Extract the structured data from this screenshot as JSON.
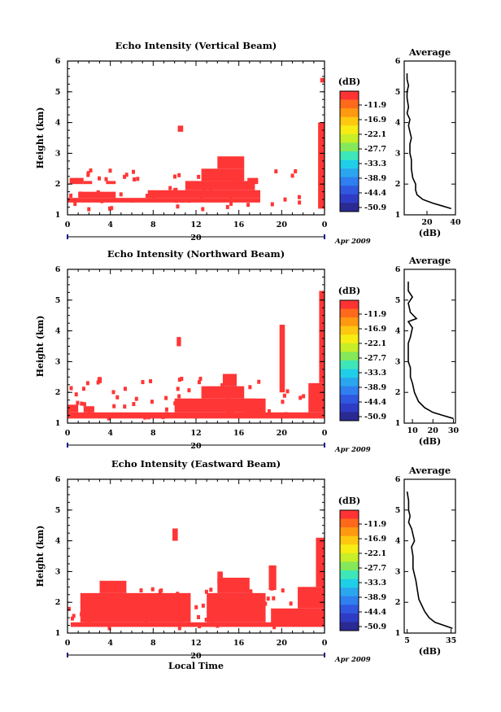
{
  "chart_data": [
    {
      "type": "heatmap",
      "title": "Echo Intensity (Vertical Beam)",
      "ylabel": "Height (km)",
      "x_ticks": [
        "0",
        "4",
        "8",
        "12",
        "16",
        "20",
        "0"
      ],
      "y_ticks": [
        "1",
        "2",
        "3",
        "4",
        "5",
        "6"
      ],
      "xlim": [
        0,
        24
      ],
      "ylim": [
        1,
        6
      ],
      "date_label": "20",
      "month_label": "Apr 2009",
      "colorbar": {
        "label": "(dB)",
        "levels": [
          "-11.9",
          "-16.9",
          "-22.1",
          "-27.7",
          "-33.3",
          "-38.9",
          "-44.4",
          "-50.9"
        ]
      },
      "profile": {
        "title": "Average",
        "xlabel": "(dB)",
        "x_ticks": [
          "20",
          "40"
        ],
        "y_ticks": [
          "1",
          "2",
          "3",
          "4",
          "5",
          "6"
        ],
        "xlim": [
          4,
          40
        ],
        "points": [
          [
            37,
            1.2
          ],
          [
            30,
            1.3
          ],
          [
            24,
            1.38
          ],
          [
            17,
            1.5
          ],
          [
            13,
            1.65
          ],
          [
            12,
            1.8
          ],
          [
            12,
            2.0
          ],
          [
            10,
            2.2
          ],
          [
            9,
            2.5
          ],
          [
            9,
            2.8
          ],
          [
            8,
            3.0
          ],
          [
            8,
            3.3
          ],
          [
            9,
            3.5
          ],
          [
            8,
            3.7
          ],
          [
            7,
            3.9
          ],
          [
            8,
            4.1
          ],
          [
            6,
            4.3
          ],
          [
            7,
            4.5
          ],
          [
            6,
            4.8
          ],
          [
            6,
            5.0
          ],
          [
            7,
            5.2
          ],
          [
            6,
            5.4
          ],
          [
            6,
            5.6
          ]
        ]
      }
    },
    {
      "type": "heatmap",
      "title": "Echo Intensity (Northward Beam)",
      "ylabel": "Height (km)",
      "x_ticks": [
        "0",
        "4",
        "8",
        "12",
        "16",
        "20",
        "0"
      ],
      "y_ticks": [
        "1",
        "2",
        "3",
        "4",
        "5",
        "6"
      ],
      "xlim": [
        0,
        24
      ],
      "ylim": [
        1,
        6
      ],
      "date_label": "20",
      "month_label": "Apr 2009",
      "colorbar": {
        "label": "(dB)",
        "levels": [
          "-11.9",
          "-16.9",
          "-22.1",
          "-27.7",
          "-33.3",
          "-38.9",
          "-44.4",
          "-50.9"
        ]
      },
      "profile": {
        "title": "Average",
        "xlabel": "(dB)",
        "x_ticks": [
          "10",
          "20",
          "30"
        ],
        "y_ticks": [
          "1",
          "2",
          "3",
          "4",
          "5",
          "6"
        ],
        "xlim": [
          6,
          31
        ],
        "points": [
          [
            30,
            1.15
          ],
          [
            25,
            1.25
          ],
          [
            20,
            1.35
          ],
          [
            16,
            1.5
          ],
          [
            13,
            1.7
          ],
          [
            11,
            2.0
          ],
          [
            10,
            2.3
          ],
          [
            9,
            2.5
          ],
          [
            9,
            2.8
          ],
          [
            8,
            3.0
          ],
          [
            8,
            3.3
          ],
          [
            8,
            3.6
          ],
          [
            9,
            3.8
          ],
          [
            10,
            4.1
          ],
          [
            8,
            4.3
          ],
          [
            12,
            4.4
          ],
          [
            9,
            4.6
          ],
          [
            8,
            4.9
          ],
          [
            10,
            5.1
          ],
          [
            8,
            5.3
          ],
          [
            8,
            5.6
          ]
        ]
      }
    },
    {
      "type": "heatmap",
      "title": "Echo Intensity (Eastward Beam)",
      "ylabel": "Height (km)",
      "xlabel": "Local Time",
      "x_ticks": [
        "0",
        "4",
        "8",
        "12",
        "16",
        "20",
        "0"
      ],
      "y_ticks": [
        "1",
        "2",
        "3",
        "4",
        "5",
        "6"
      ],
      "xlim": [
        0,
        24
      ],
      "ylim": [
        1,
        6
      ],
      "date_label": "20",
      "month_label": "Apr 2009",
      "colorbar": {
        "label": "(dB)",
        "levels": [
          "-11.9",
          "-16.9",
          "-22.1",
          "-27.7",
          "-33.3",
          "-38.9",
          "-44.4",
          "-50.9"
        ]
      },
      "profile": {
        "title": "Average",
        "xlabel": "(dB)",
        "x_ticks": [
          "5",
          "35"
        ],
        "y_ticks": [
          "1",
          "2",
          "3",
          "4",
          "5",
          "6"
        ],
        "xlim": [
          3,
          38
        ],
        "points": [
          [
            36,
            1.15
          ],
          [
            30,
            1.25
          ],
          [
            24,
            1.35
          ],
          [
            20,
            1.5
          ],
          [
            17,
            1.7
          ],
          [
            15,
            1.9
          ],
          [
            13,
            2.1
          ],
          [
            12,
            2.4
          ],
          [
            11,
            2.7
          ],
          [
            10,
            2.9
          ],
          [
            9,
            3.1
          ],
          [
            9,
            3.3
          ],
          [
            9,
            3.5
          ],
          [
            8,
            3.8
          ],
          [
            10,
            4.0
          ],
          [
            9,
            4.2
          ],
          [
            8,
            4.4
          ],
          [
            6,
            4.6
          ],
          [
            7,
            4.8
          ],
          [
            6,
            5.0
          ],
          [
            6,
            5.3
          ],
          [
            5,
            5.6
          ]
        ]
      }
    }
  ],
  "colors": {
    "echo": "#ff3636",
    "colorbar": [
      "#ff3333",
      "#ff6a1a",
      "#ff9910",
      "#ffc810",
      "#f7ec14",
      "#c8ee28",
      "#84e85a",
      "#3ee7b8",
      "#1fcfe8",
      "#2aa6ee",
      "#2f7ff0",
      "#2f57e0",
      "#2e3bc4",
      "#2a2a92"
    ]
  }
}
